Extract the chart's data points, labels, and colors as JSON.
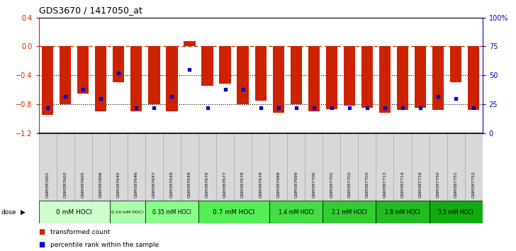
{
  "title": "GDS3670 / 1417050_at",
  "samples": [
    "GSM387601",
    "GSM387602",
    "GSM387605",
    "GSM387606",
    "GSM387645",
    "GSM387646",
    "GSM387647",
    "GSM387648",
    "GSM387649",
    "GSM387676",
    "GSM387677",
    "GSM387678",
    "GSM387679",
    "GSM387698",
    "GSM387699",
    "GSM387700",
    "GSM387701",
    "GSM387702",
    "GSM387703",
    "GSM387713",
    "GSM387714",
    "GSM387716",
    "GSM387750",
    "GSM387751",
    "GSM387752"
  ],
  "red_values": [
    -0.95,
    -0.8,
    -0.65,
    -0.9,
    -0.5,
    -0.9,
    -0.8,
    -0.9,
    0.07,
    -0.55,
    -0.52,
    -0.8,
    -0.75,
    -0.92,
    -0.8,
    -0.9,
    -0.87,
    -0.82,
    -0.85,
    -0.92,
    -0.88,
    -0.85,
    -0.88,
    -0.5,
    -0.88
  ],
  "blue_pct": [
    22,
    32,
    38,
    30,
    52,
    22,
    22,
    32,
    55,
    22,
    38,
    38,
    22,
    22,
    22,
    22,
    22,
    22,
    22,
    22,
    22,
    22,
    32,
    30,
    22
  ],
  "dose_groups": [
    {
      "label": "0 mM HOCl",
      "start": 0,
      "end": 4,
      "color": "#ccffcc"
    },
    {
      "label": "0.14 mM HOCl",
      "start": 4,
      "end": 6,
      "color": "#aaffaa"
    },
    {
      "label": "0.35 mM HOCl",
      "start": 6,
      "end": 9,
      "color": "#88ff88"
    },
    {
      "label": "0.7 mM HOCl",
      "start": 9,
      "end": 13,
      "color": "#55ee55"
    },
    {
      "label": "1.4 mM HOCl",
      "start": 13,
      "end": 16,
      "color": "#44dd44"
    },
    {
      "label": "2.1 mM HOCl",
      "start": 16,
      "end": 19,
      "color": "#33cc33"
    },
    {
      "label": "2.8 mM HOCl",
      "start": 19,
      "end": 22,
      "color": "#22bb22"
    },
    {
      "label": "3.5 mM HOCl",
      "start": 22,
      "end": 25,
      "color": "#11aa11"
    }
  ],
  "ylim_left": [
    -1.2,
    0.4
  ],
  "ylim_right": [
    0,
    100
  ],
  "yticks_left": [
    -1.2,
    -0.8,
    -0.4,
    0.0,
    0.4
  ],
  "yticks_right": [
    0,
    25,
    50,
    75,
    100
  ],
  "yticklabels_right": [
    "0",
    "25",
    "50",
    "75",
    "100%"
  ],
  "dotted_lines": [
    -0.4,
    -0.8
  ],
  "bar_color": "#cc2200",
  "blue_color": "#0000cc",
  "bg_color": "#ffffff",
  "plot_bg": "#ffffff",
  "sample_box_color": "#d8d8d8",
  "sample_box_edge": "#aaaaaa"
}
